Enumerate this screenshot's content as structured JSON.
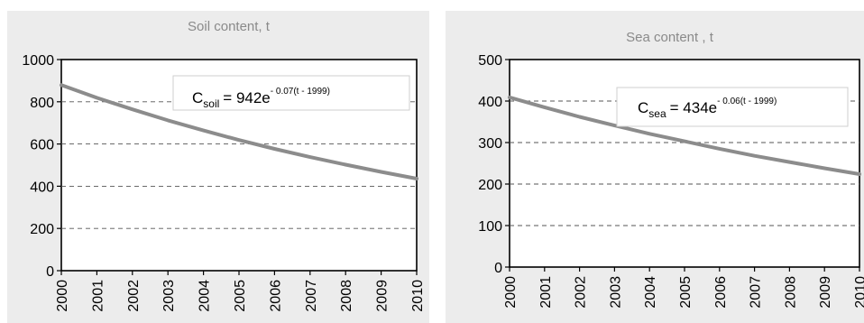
{
  "chart_data": [
    {
      "type": "line",
      "title": "Soil content, t",
      "x": [
        2000,
        2001,
        2002,
        2003,
        2004,
        2005,
        2006,
        2007,
        2008,
        2009,
        2010
      ],
      "series": [
        {
          "values": [
            879,
            819,
            764,
            712,
            664,
            619,
            577,
            538,
            502,
            468,
            436
          ]
        }
      ],
      "ylim": [
        0,
        1000
      ],
      "yticks": [
        "0",
        "200",
        "400",
        "600",
        "800",
        "1000"
      ],
      "xticks": [
        "2000",
        "2001",
        "2002",
        "2003",
        "2004",
        "2005",
        "2006",
        "2007",
        "2008",
        "2009",
        "2010"
      ],
      "grid": true,
      "equation": {
        "var": "C",
        "sub": "soil",
        "coef": "= 942e",
        "exp": "- 0.07(t - 1999)"
      },
      "colors": {
        "line": "#8c8c8c",
        "panel": "#ececec"
      }
    },
    {
      "type": "line",
      "title": "Sea content , t",
      "x": [
        2000,
        2001,
        2002,
        2003,
        2004,
        2005,
        2006,
        2007,
        2008,
        2009,
        2010
      ],
      "series": [
        {
          "values": [
            409,
            385,
            362,
            341,
            321,
            303,
            285,
            268,
            253,
            238,
            224
          ]
        }
      ],
      "ylim": [
        0,
        500
      ],
      "yticks": [
        "0",
        "100",
        "200",
        "300",
        "400",
        "500"
      ],
      "xticks": [
        "2000",
        "2001",
        "2002",
        "2003",
        "2004",
        "2005",
        "2006",
        "2007",
        "2008",
        "2009",
        "2010"
      ],
      "grid": true,
      "equation": {
        "var": "C",
        "sub": "sea",
        "coef": "= 434e",
        "exp": "- 0.06(t - 1999)"
      },
      "colors": {
        "line": "#8c8c8c",
        "panel": "#ececec"
      }
    }
  ]
}
